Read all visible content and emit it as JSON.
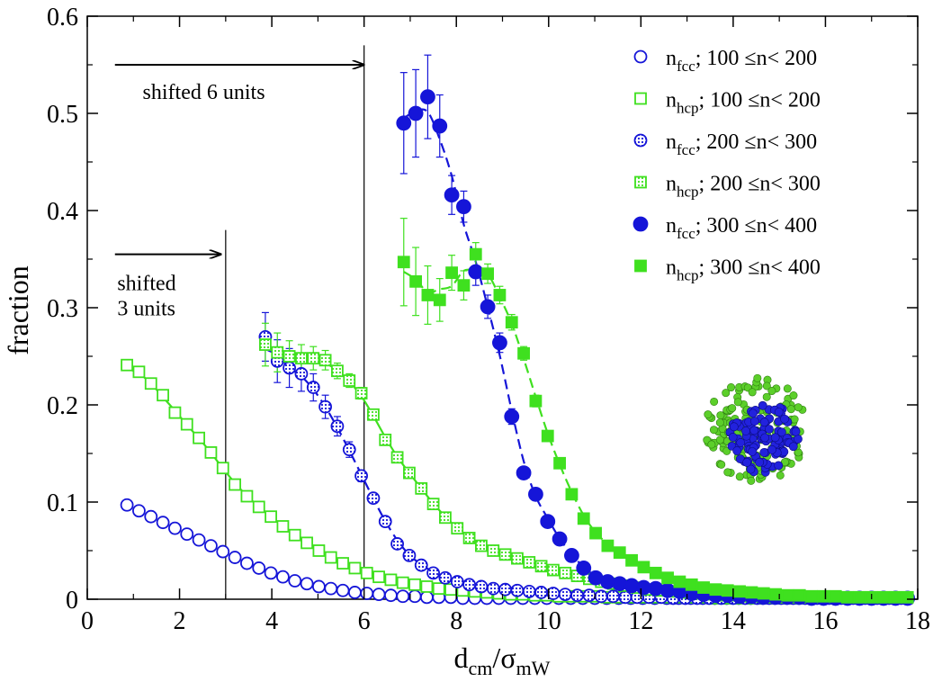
{
  "chart_data": {
    "type": "scatter",
    "title": "",
    "xlabel": {
      "main": "d",
      "sub1": "cm",
      "slash": "/",
      "sigma": "σ",
      "sub2": "mW"
    },
    "ylabel": "fraction",
    "xlim": [
      0,
      18
    ],
    "ylim": [
      0,
      0.6
    ],
    "xticks": [
      0,
      2,
      4,
      6,
      8,
      10,
      12,
      14,
      16,
      18
    ],
    "yticks": [
      0,
      0.1,
      0.2,
      0.3,
      0.4,
      0.5,
      0.6
    ],
    "ytick_labels": [
      "0",
      "0.1",
      "0.2",
      "0.3",
      "0.4",
      "0.5",
      "0.6"
    ],
    "vertical_lines": [
      {
        "x": 3,
        "y_top": 0.38
      },
      {
        "x": 6,
        "y_top": 0.57
      }
    ],
    "annotations": [
      {
        "lines": [
          "shifted 6 units"
        ],
        "arrow_from": 0.6,
        "arrow_to": 6.0,
        "arrow_y": 0.55
      },
      {
        "lines": [
          "shifted",
          "3 units"
        ],
        "arrow_from": 0.6,
        "arrow_to": 2.9,
        "arrow_y": 0.355
      }
    ],
    "legend": {
      "placement": "top-right"
    },
    "series": [
      {
        "name": "n_fcc; 100 ≤n< 200",
        "label": {
          "var": "n",
          "sub": "fcc",
          "range": "100 ≤n< 200"
        },
        "color": "#1515d8",
        "marker": "circle",
        "fill": "open",
        "x": [
          0.86,
          1.12,
          1.38,
          1.64,
          1.9,
          2.16,
          2.42,
          2.68,
          2.94,
          3.2,
          3.46,
          3.72,
          3.98,
          4.24,
          4.5,
          4.76,
          5.02,
          5.28,
          5.54,
          5.8,
          6.06,
          6.32,
          6.58,
          6.84,
          7.1,
          7.36,
          7.62,
          7.88,
          8.14,
          8.4,
          8.66,
          8.92,
          9.18,
          9.44,
          9.7,
          9.96,
          10.22,
          10.48,
          10.74,
          11.0,
          11.26,
          11.52,
          11.78,
          12.04,
          12.3,
          12.56,
          12.82,
          13.08,
          13.34,
          13.6,
          13.86,
          14.12,
          14.38,
          14.64,
          14.9,
          15.16,
          15.42,
          15.68,
          15.94,
          16.2,
          16.46,
          16.72,
          16.98,
          17.24,
          17.5,
          17.76
        ],
        "y": [
          0.097,
          0.091,
          0.085,
          0.079,
          0.073,
          0.067,
          0.061,
          0.055,
          0.049,
          0.043,
          0.037,
          0.032,
          0.027,
          0.023,
          0.019,
          0.016,
          0.013,
          0.011,
          0.009,
          0.007,
          0.006,
          0.005,
          0.004,
          0.003,
          0.003,
          0.002,
          0.002,
          0.002,
          0.001,
          0.001,
          0.001,
          0.001,
          0.001,
          0.001,
          0.001,
          0.001,
          0.001,
          0.001,
          0.001,
          0.001,
          0.001,
          0.001,
          0.001,
          0.001,
          0.001,
          0.001,
          0.001,
          0.001,
          0.001,
          0.001,
          0.001,
          0.001,
          0.001,
          0.001,
          0.001,
          0.001,
          0.001,
          0.001,
          0.001,
          0.001,
          0.001,
          0.001,
          0.001,
          0.001,
          0.001,
          0.001
        ]
      },
      {
        "name": "n_hcp; 100 ≤n< 200",
        "label": {
          "var": "n",
          "sub": "hcp",
          "range": "100 ≤n< 200"
        },
        "color": "#3fe01f",
        "marker": "square",
        "fill": "open",
        "fit": "solid",
        "x": [
          0.86,
          1.12,
          1.38,
          1.64,
          1.9,
          2.16,
          2.42,
          2.68,
          2.94,
          3.2,
          3.46,
          3.72,
          3.98,
          4.24,
          4.5,
          4.76,
          5.02,
          5.28,
          5.54,
          5.8,
          6.06,
          6.32,
          6.58,
          6.84,
          7.1,
          7.36,
          7.62,
          7.88,
          8.14,
          8.4,
          8.66,
          8.92,
          9.18,
          9.44,
          9.7,
          9.96,
          10.22,
          10.48,
          10.74,
          11.0,
          11.26,
          11.52,
          11.78,
          12.04,
          12.3,
          12.56,
          12.82,
          13.08,
          13.34,
          13.6,
          13.86,
          14.12,
          14.38,
          14.64,
          14.9,
          15.16,
          15.42,
          15.68,
          15.94,
          16.2,
          16.46,
          16.72,
          16.98,
          17.24,
          17.5,
          17.76
        ],
        "y": [
          0.241,
          0.234,
          0.222,
          0.21,
          0.192,
          0.18,
          0.166,
          0.151,
          0.135,
          0.118,
          0.106,
          0.095,
          0.085,
          0.075,
          0.066,
          0.058,
          0.05,
          0.043,
          0.037,
          0.032,
          0.027,
          0.023,
          0.02,
          0.017,
          0.015,
          0.013,
          0.011,
          0.01,
          0.009,
          0.008,
          0.007,
          0.006,
          0.005,
          0.005,
          0.004,
          0.004,
          0.003,
          0.003,
          0.003,
          0.003,
          0.002,
          0.002,
          0.002,
          0.002,
          0.002,
          0.002,
          0.002,
          0.002,
          0.002,
          0.001,
          0.001,
          0.001,
          0.001,
          0.001,
          0.001,
          0.001,
          0.001,
          0.001,
          0.001,
          0.001,
          0.001,
          0.001,
          0.001,
          0.001,
          0.001,
          0.001
        ]
      },
      {
        "name": "n_fcc; 200 ≤n< 300",
        "label": {
          "var": "n",
          "sub": "fcc",
          "range": "200 ≤n< 300"
        },
        "color": "#1515d8",
        "marker": "circle",
        "fill": "dotted",
        "fit": "dashed",
        "x": [
          3.86,
          4.12,
          4.38,
          4.64,
          4.9,
          5.16,
          5.42,
          5.68,
          5.94,
          6.2,
          6.46,
          6.72,
          6.98,
          7.24,
          7.5,
          7.76,
          8.02,
          8.28,
          8.54,
          8.8,
          9.06,
          9.32,
          9.58,
          9.84,
          10.1,
          10.36,
          10.62,
          10.88,
          11.14,
          11.4,
          11.66,
          11.92,
          12.18,
          12.44,
          12.7,
          12.96,
          13.22,
          13.48,
          13.74,
          14.0,
          14.26,
          14.52,
          14.78,
          15.04,
          15.3,
          15.56,
          15.82,
          16.08,
          16.34,
          16.6,
          16.86,
          17.12,
          17.38,
          17.64
        ],
        "y": [
          0.27,
          0.245,
          0.238,
          0.232,
          0.218,
          0.198,
          0.178,
          0.154,
          0.127,
          0.104,
          0.08,
          0.057,
          0.045,
          0.035,
          0.027,
          0.022,
          0.018,
          0.015,
          0.013,
          0.011,
          0.01,
          0.009,
          0.008,
          0.007,
          0.006,
          0.005,
          0.004,
          0.004,
          0.003,
          0.003,
          0.002,
          0.002,
          0.002,
          0.002,
          0.001,
          0.001,
          0.001,
          0.001,
          0.001,
          0.001,
          0.001,
          0.001,
          0.001,
          0.001,
          0.001,
          0.001,
          0.001,
          0.001,
          0.001,
          0.001,
          0.001,
          0.001,
          0.001,
          0.001
        ],
        "err": [
          0.025,
          0.022,
          0.02,
          0.018,
          0.014,
          0.012,
          0.01,
          0.008,
          0.006,
          0.004,
          0.003,
          0.002,
          0.002,
          0.001,
          0.001,
          0.001,
          0.001,
          0.001,
          0.001,
          0.001,
          0.001,
          0.001,
          0.001,
          0.001,
          0.001,
          0.001,
          0.001,
          0.001,
          0.001,
          0.001,
          0.001,
          0.001,
          0.001,
          0.001,
          0.001,
          0.001,
          0.001,
          0.001,
          0.001,
          0.001,
          0.001,
          0.001,
          0.001,
          0.001,
          0.001,
          0.001,
          0.001,
          0.001,
          0.001,
          0.001,
          0.001,
          0.001,
          0.001,
          0.001
        ]
      },
      {
        "name": "n_hcp; 200 ≤n< 300",
        "label": {
          "var": "n",
          "sub": "hcp",
          "range": "200 ≤n< 300"
        },
        "color": "#3fe01f",
        "marker": "square",
        "fill": "dotted",
        "fit": "solid",
        "x": [
          3.86,
          4.12,
          4.38,
          4.64,
          4.9,
          5.16,
          5.42,
          5.68,
          5.94,
          6.2,
          6.46,
          6.72,
          6.98,
          7.24,
          7.5,
          7.76,
          8.02,
          8.28,
          8.54,
          8.8,
          9.06,
          9.32,
          9.58,
          9.84,
          10.1,
          10.36,
          10.62,
          10.88,
          11.14,
          11.4,
          11.66,
          11.92,
          12.18,
          12.44,
          12.7,
          12.96,
          13.22,
          13.48,
          13.74,
          14.0,
          14.26,
          14.52,
          14.78,
          15.04,
          15.3,
          15.56,
          15.82,
          16.08,
          16.34,
          16.6,
          16.86,
          17.12,
          17.38,
          17.64
        ],
        "y": [
          0.262,
          0.254,
          0.25,
          0.248,
          0.248,
          0.246,
          0.235,
          0.225,
          0.212,
          0.19,
          0.164,
          0.146,
          0.13,
          0.114,
          0.098,
          0.084,
          0.073,
          0.063,
          0.055,
          0.05,
          0.046,
          0.042,
          0.038,
          0.034,
          0.03,
          0.027,
          0.024,
          0.021,
          0.018,
          0.016,
          0.014,
          0.012,
          0.01,
          0.009,
          0.008,
          0.007,
          0.006,
          0.005,
          0.004,
          0.004,
          0.003,
          0.003,
          0.002,
          0.002,
          0.002,
          0.002,
          0.002,
          0.002,
          0.002,
          0.002,
          0.002,
          0.002,
          0.002,
          0.002
        ],
        "err": [
          0.022,
          0.02,
          0.016,
          0.014,
          0.012,
          0.01,
          0.008,
          0.007,
          0.006,
          0.005,
          0.004,
          0.003,
          0.003,
          0.002,
          0.002,
          0.002,
          0.001,
          0.001,
          0.001,
          0.001,
          0.001,
          0.001,
          0.001,
          0.001,
          0.001,
          0.001,
          0.001,
          0.001,
          0.001,
          0.001,
          0.001,
          0.001,
          0.001,
          0.001,
          0.001,
          0.001,
          0.001,
          0.001,
          0.001,
          0.001,
          0.001,
          0.001,
          0.001,
          0.001,
          0.001,
          0.001,
          0.001,
          0.001,
          0.001,
          0.001,
          0.001,
          0.001,
          0.001,
          0.001
        ]
      },
      {
        "name": "n_fcc; 300 ≤n< 400",
        "label": {
          "var": "n",
          "sub": "fcc",
          "range": "300 ≤n< 400"
        },
        "color": "#1515d8",
        "marker": "circle",
        "fill": "filled",
        "fit": "dashed",
        "x": [
          6.86,
          7.12,
          7.38,
          7.64,
          7.9,
          8.16,
          8.42,
          8.68,
          8.94,
          9.2,
          9.46,
          9.72,
          9.98,
          10.24,
          10.5,
          10.76,
          11.02,
          11.28,
          11.54,
          11.8,
          12.06,
          12.32,
          12.58,
          12.84,
          13.1,
          13.36,
          13.62,
          13.88,
          14.14,
          14.4,
          14.66,
          14.92,
          15.18,
          15.44,
          15.7,
          15.96,
          16.22,
          16.48,
          16.74,
          17.0,
          17.26,
          17.52,
          17.78
        ],
        "y": [
          0.49,
          0.5,
          0.517,
          0.487,
          0.416,
          0.404,
          0.337,
          0.301,
          0.264,
          0.188,
          0.13,
          0.108,
          0.08,
          0.062,
          0.045,
          0.032,
          0.022,
          0.018,
          0.016,
          0.014,
          0.012,
          0.011,
          0.009,
          0.008,
          0.006,
          0.005,
          0.004,
          0.004,
          0.003,
          0.003,
          0.002,
          0.002,
          0.002,
          0.002,
          0.001,
          0.001,
          0.001,
          0.001,
          0.001,
          0.001,
          0.001,
          0.001,
          0.001
        ],
        "err": [
          0.052,
          0.045,
          0.043,
          0.032,
          0.02,
          0.016,
          0.014,
          0.012,
          0.01,
          0.008,
          0.006,
          0.005,
          0.004,
          0.003,
          0.002,
          0.002,
          0.002,
          0.001,
          0.001,
          0.001,
          0.001,
          0.001,
          0.001,
          0.001,
          0.001,
          0.001,
          0.001,
          0.001,
          0.001,
          0.001,
          0.001,
          0.001,
          0.001,
          0.001,
          0.001,
          0.001,
          0.001,
          0.001,
          0.001,
          0.001,
          0.001,
          0.001,
          0.001
        ]
      },
      {
        "name": "n_hcp; 300 ≤n< 400",
        "label": {
          "var": "n",
          "sub": "hcp",
          "range": "300 ≤n< 400"
        },
        "color": "#3fe01f",
        "marker": "square",
        "fill": "filled",
        "fit": "dashed",
        "x": [
          6.86,
          7.12,
          7.38,
          7.64,
          7.9,
          8.16,
          8.42,
          8.68,
          8.94,
          9.2,
          9.46,
          9.72,
          9.98,
          10.24,
          10.5,
          10.76,
          11.02,
          11.28,
          11.54,
          11.8,
          12.06,
          12.32,
          12.58,
          12.84,
          13.1,
          13.36,
          13.62,
          13.88,
          14.14,
          14.4,
          14.66,
          14.92,
          15.18,
          15.44,
          15.7,
          15.96,
          16.22,
          16.48,
          16.74,
          17.0,
          17.26,
          17.52,
          17.78
        ],
        "y": [
          0.347,
          0.327,
          0.313,
          0.308,
          0.336,
          0.323,
          0.355,
          0.335,
          0.313,
          0.285,
          0.253,
          0.204,
          0.168,
          0.14,
          0.108,
          0.083,
          0.068,
          0.055,
          0.048,
          0.04,
          0.033,
          0.027,
          0.022,
          0.018,
          0.015,
          0.012,
          0.01,
          0.009,
          0.008,
          0.007,
          0.006,
          0.005,
          0.004,
          0.004,
          0.003,
          0.003,
          0.003,
          0.002,
          0.002,
          0.002,
          0.002,
          0.002,
          0.002
        ],
        "err": [
          0.045,
          0.035,
          0.03,
          0.022,
          0.018,
          0.015,
          0.012,
          0.01,
          0.009,
          0.008,
          0.007,
          0.006,
          0.005,
          0.004,
          0.003,
          0.003,
          0.002,
          0.002,
          0.002,
          0.002,
          0.001,
          0.001,
          0.001,
          0.001,
          0.001,
          0.001,
          0.001,
          0.001,
          0.001,
          0.001,
          0.001,
          0.001,
          0.001,
          0.001,
          0.001,
          0.001,
          0.001,
          0.001,
          0.001,
          0.001,
          0.001,
          0.001,
          0.001
        ]
      }
    ],
    "inset": {
      "description": "cluster",
      "outer_color": "#5ccf2a",
      "inner_color": "#2222dd",
      "cx": 14.5,
      "cy": 0.175,
      "r_outer": 0.052,
      "r_inner": 0.036
    }
  }
}
